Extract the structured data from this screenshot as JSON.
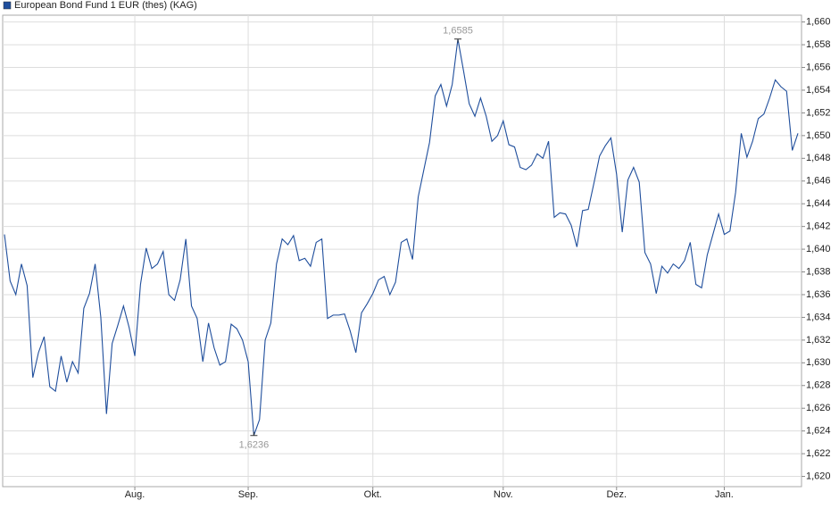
{
  "chart_data": {
    "type": "line",
    "categories": [
      null,
      null,
      null,
      null,
      null,
      null,
      null,
      null,
      null,
      null,
      null,
      null,
      null,
      null,
      null,
      null,
      null,
      null,
      null,
      null,
      null,
      null,
      null,
      "Aug.",
      null,
      null,
      null,
      null,
      null,
      null,
      null,
      null,
      null,
      null,
      null,
      null,
      null,
      null,
      null,
      null,
      null,
      null,
      null,
      "Sep.",
      null,
      null,
      null,
      null,
      null,
      null,
      null,
      null,
      null,
      null,
      null,
      null,
      null,
      null,
      null,
      null,
      null,
      null,
      null,
      null,
      null,
      "Okt.",
      null,
      null,
      null,
      null,
      null,
      null,
      null,
      null,
      null,
      null,
      null,
      null,
      null,
      null,
      null,
      null,
      null,
      null,
      null,
      null,
      null,
      null,
      "Nov.",
      null,
      null,
      null,
      null,
      null,
      null,
      null,
      null,
      null,
      null,
      null,
      null,
      null,
      null,
      null,
      null,
      null,
      null,
      null,
      "Dez.",
      null,
      null,
      null,
      null,
      null,
      null,
      null,
      null,
      null,
      null,
      null,
      null,
      null,
      null,
      null,
      null,
      null,
      null,
      "Jan.",
      null,
      null,
      null,
      null,
      null,
      null,
      null,
      null,
      null,
      null,
      null,
      null,
      null
    ],
    "series": [
      {
        "name": "European Bond Fund 1 EUR (thes) (KAG)",
        "color": "#1f4e9c",
        "values": [
          1.6413,
          1.6372,
          1.636,
          1.6387,
          1.6368,
          1.6287,
          1.6309,
          1.6323,
          1.6279,
          1.6275,
          1.6306,
          1.6283,
          1.6301,
          1.6291,
          1.6348,
          1.6361,
          1.6387,
          1.634,
          1.6255,
          1.6317,
          1.6333,
          1.635,
          1.6331,
          1.6306,
          1.6369,
          1.6401,
          1.6383,
          1.6387,
          1.6398,
          1.636,
          1.6355,
          1.6373,
          1.6409,
          1.635,
          1.6339,
          1.6301,
          1.6335,
          1.6313,
          1.6298,
          1.6301,
          1.6334,
          1.633,
          1.632,
          1.6301,
          1.6236,
          1.625,
          1.632,
          1.6335,
          1.6387,
          1.6409,
          1.6404,
          1.6412,
          1.639,
          1.6392,
          1.6385,
          1.6406,
          1.6409,
          1.6339,
          1.6342,
          1.6342,
          1.6343,
          1.6328,
          1.6309,
          1.6344,
          1.6352,
          1.6361,
          1.6373,
          1.6376,
          1.636,
          1.6371,
          1.6406,
          1.6409,
          1.6391,
          1.6446,
          1.647,
          1.6494,
          1.6535,
          1.6545,
          1.6526,
          1.6545,
          1.6585,
          1.6557,
          1.6528,
          1.6517,
          1.6533,
          1.6517,
          1.6495,
          1.65,
          1.6513,
          1.6492,
          1.649,
          1.6472,
          1.647,
          1.6474,
          1.6484,
          1.648,
          1.6495,
          1.6428,
          1.6432,
          1.6431,
          1.6421,
          1.6402,
          1.6434,
          1.6435,
          1.6458,
          1.6482,
          1.6491,
          1.6498,
          1.6466,
          1.6415,
          1.6461,
          1.6472,
          1.6459,
          1.6397,
          1.6387,
          1.6361,
          1.6385,
          1.6379,
          1.6387,
          1.6383,
          1.639,
          1.6406,
          1.6369,
          1.6366,
          1.6395,
          1.6413,
          1.6431,
          1.6413,
          1.6416,
          1.645,
          1.6502,
          1.6481,
          1.6495,
          1.6515,
          1.6519,
          1.6533,
          1.6549,
          1.6543,
          1.6539,
          1.6487,
          1.6502
        ]
      }
    ],
    "annotations": [
      {
        "value": 1.6585,
        "label": "1,6585"
      },
      {
        "value": 1.6236,
        "label": "1,6236"
      }
    ],
    "ylim": [
      1.6191,
      1.6606
    ],
    "yticks": [
      {
        "value": 1.62,
        "label": "1,620"
      },
      {
        "value": 1.622,
        "label": "1,622"
      },
      {
        "value": 1.624,
        "label": "1,624"
      },
      {
        "value": 1.626,
        "label": "1,626"
      },
      {
        "value": 1.628,
        "label": "1,628"
      },
      {
        "value": 1.63,
        "label": "1,630"
      },
      {
        "value": 1.632,
        "label": "1,632"
      },
      {
        "value": 1.634,
        "label": "1,634"
      },
      {
        "value": 1.636,
        "label": "1,636"
      },
      {
        "value": 1.638,
        "label": "1,638"
      },
      {
        "value": 1.64,
        "label": "1,640"
      },
      {
        "value": 1.642,
        "label": "1,642"
      },
      {
        "value": 1.644,
        "label": "1,644"
      },
      {
        "value": 1.646,
        "label": "1,646"
      },
      {
        "value": 1.648,
        "label": "1,648"
      },
      {
        "value": 1.65,
        "label": "1,650"
      },
      {
        "value": 1.652,
        "label": "1,652"
      },
      {
        "value": 1.654,
        "label": "1,654"
      },
      {
        "value": 1.656,
        "label": "1,656"
      },
      {
        "value": 1.658,
        "label": "1,658"
      },
      {
        "value": 1.66,
        "label": "1,660"
      }
    ],
    "grid": true,
    "legend": "top-left"
  }
}
